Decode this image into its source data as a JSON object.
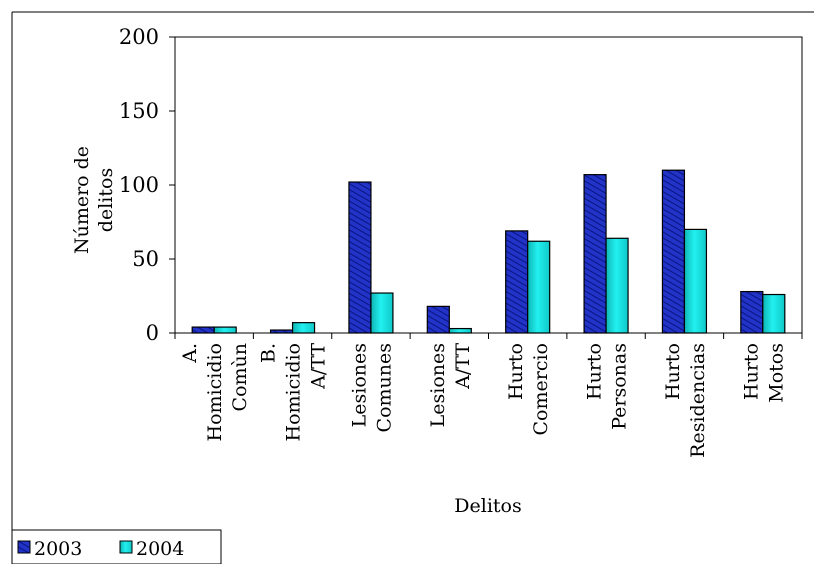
{
  "chart_data": {
    "type": "bar",
    "title": "",
    "xlabel": "Delitos",
    "ylabel": "Número de delitos",
    "ylabel_lines": [
      "Número de",
      "delitos"
    ],
    "ylim": [
      0,
      200
    ],
    "yticks": [
      0,
      50,
      100,
      150,
      200
    ],
    "grid": false,
    "legend_position": "bottom-left",
    "categories": [
      "A. Homicidio Comùn",
      "B. Homicidio A/TT",
      "Lesiones Comunes",
      "Lesiones A/TT",
      "Hurto Comercio",
      "Hurto Personas",
      "Hurto Residencias",
      "Hurto Motos"
    ],
    "category_label_lines": [
      [
        "A.",
        "Homicidio",
        "Comùn"
      ],
      [
        "B.",
        "Homicidio",
        "A/TT"
      ],
      [
        "Lesiones",
        "Comunes"
      ],
      [
        "Lesiones",
        "A/TT"
      ],
      [
        "Hurto",
        "Comercio"
      ],
      [
        "Hurto",
        "Personas"
      ],
      [
        "Hurto",
        "Residencias"
      ],
      [
        "Hurto",
        "Motos"
      ]
    ],
    "series": [
      {
        "name": "2003",
        "color": "#1f2fd0",
        "pattern": "diagonal-hatch",
        "values": [
          4,
          2,
          102,
          18,
          69,
          107,
          110,
          28
        ]
      },
      {
        "name": "2004",
        "color": "#19e0e0",
        "values": [
          4,
          7,
          27,
          3,
          62,
          64,
          70,
          26
        ]
      }
    ]
  }
}
